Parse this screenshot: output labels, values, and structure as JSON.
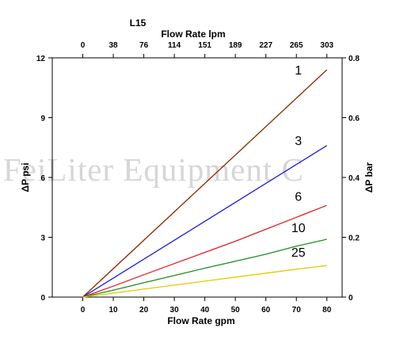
{
  "watermark": "FeiLiter Equipment C",
  "chart_data": {
    "type": "line",
    "title": "L15",
    "xlabel": "Flow Rate gpm",
    "x2label": "Flow Rate lpm",
    "ylabel": "ΔP psi",
    "y2label": "ΔP bar",
    "xlim": [
      -10,
      85
    ],
    "ylim": [
      0,
      12
    ],
    "y2lim": [
      0,
      0.8
    ],
    "x_ticks": [
      0,
      10,
      20,
      30,
      40,
      50,
      60,
      70,
      80
    ],
    "x2_ticks": [
      "0",
      "38",
      "76",
      "114",
      "151",
      "189",
      "227",
      "265",
      "303"
    ],
    "y_ticks": [
      0,
      3,
      6,
      9,
      12
    ],
    "y2_ticks": [
      "0",
      "0.2",
      "0.4",
      "0.6",
      "0.8"
    ],
    "grid": false,
    "series": [
      {
        "name": "1",
        "color": "#8b2500",
        "x": [
          0,
          80
        ],
        "y": [
          0,
          11.4
        ]
      },
      {
        "name": "3",
        "color": "#1a1acc",
        "x": [
          0,
          80
        ],
        "y": [
          0,
          7.6
        ]
      },
      {
        "name": "6",
        "color": "#dd2222",
        "x": [
          0,
          10,
          20,
          30,
          40,
          50,
          60,
          70,
          80
        ],
        "y": [
          0,
          0.55,
          1.12,
          1.68,
          2.24,
          2.8,
          3.4,
          4.0,
          4.6
        ]
      },
      {
        "name": "10",
        "color": "#1f8c1f",
        "x": [
          0,
          10,
          20,
          30,
          40,
          50,
          60,
          70,
          80
        ],
        "y": [
          0,
          0.35,
          0.72,
          1.08,
          1.45,
          1.8,
          2.15,
          2.55,
          2.9
        ]
      },
      {
        "name": "25",
        "color": "#e6c800",
        "x": [
          0,
          10,
          20,
          30,
          40,
          50,
          60,
          70,
          80
        ],
        "y": [
          0,
          0.2,
          0.4,
          0.6,
          0.8,
          1.0,
          1.2,
          1.4,
          1.58
        ]
      }
    ]
  }
}
